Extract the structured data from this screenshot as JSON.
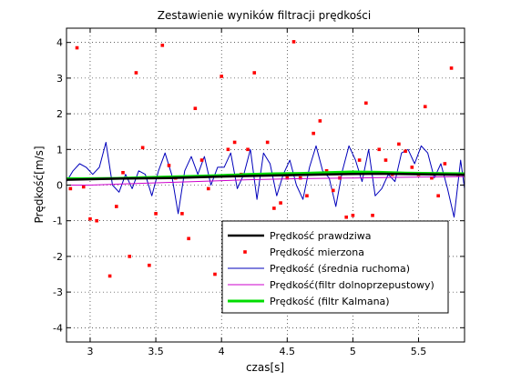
{
  "chart_data": {
    "type": "line",
    "title": "Zestawienie wyników filtracji prędkości",
    "xlabel": "czas[s]",
    "ylabel": "Prędkość[m/s]",
    "xlim": [
      2.82,
      5.85
    ],
    "ylim": [
      -4.4,
      4.4
    ],
    "xticks": [
      3,
      3.5,
      4,
      4.5,
      5,
      5.5
    ],
    "xtick_labels": [
      "3",
      "3.5",
      "4",
      "4.5",
      "5",
      "5.5"
    ],
    "yticks": [
      -4,
      -3,
      -2,
      -1,
      0,
      1,
      2,
      3,
      4
    ],
    "ytick_labels": [
      "-4",
      "-3",
      "-2",
      "-1",
      "0",
      "1",
      "2",
      "3",
      "4"
    ],
    "grid": true,
    "legend_position": "bottom-right",
    "series": [
      {
        "name": "Prędkość prawdziwa",
        "style": "line",
        "color": "#000000",
        "x": [
          2.82,
          3.2,
          3.6,
          4.0,
          4.4,
          4.8,
          5.2,
          5.6,
          5.85
        ],
        "y": [
          0.15,
          0.18,
          0.2,
          0.24,
          0.27,
          0.3,
          0.32,
          0.3,
          0.29
        ]
      },
      {
        "name": "Prędkość mierzona",
        "style": "markers",
        "color": "#ff0000",
        "x": [
          2.85,
          2.9,
          2.95,
          3.0,
          3.05,
          3.15,
          3.2,
          3.25,
          3.3,
          3.35,
          3.4,
          3.45,
          3.5,
          3.55,
          3.6,
          3.65,
          3.7,
          3.75,
          3.8,
          3.85,
          3.9,
          3.95,
          4.0,
          4.05,
          4.1,
          4.15,
          4.2,
          4.25,
          4.35,
          4.4,
          4.45,
          4.5,
          4.55,
          4.6,
          4.65,
          4.7,
          4.75,
          4.8,
          4.85,
          4.9,
          4.95,
          5.0,
          5.05,
          5.1,
          5.15,
          5.2,
          5.25,
          5.3,
          5.35,
          5.4,
          5.45,
          5.5,
          5.55,
          5.6,
          5.65,
          5.7,
          5.75,
          5.8
        ],
        "y": [
          -0.1,
          3.85,
          -0.05,
          -0.95,
          -1.0,
          -2.55,
          -0.6,
          0.35,
          -2.0,
          3.15,
          1.05,
          -2.25,
          -0.8,
          3.92,
          0.55,
          0.2,
          -0.8,
          -1.5,
          2.15,
          0.7,
          -0.1,
          -2.5,
          3.05,
          1.0,
          1.2,
          0.3,
          1.0,
          3.15,
          1.2,
          -0.65,
          -0.5,
          0.2,
          4.02,
          0.2,
          -0.3,
          1.45,
          1.8,
          0.4,
          -0.15,
          0.2,
          -0.9,
          -0.85,
          0.7,
          2.3,
          -0.85,
          1.0,
          0.7,
          0.3,
          1.15,
          0.95,
          0.5,
          0.3,
          2.2,
          0.2,
          -0.3,
          0.6,
          3.28,
          0.3
        ]
      },
      {
        "name": "Prędkość (średnia ruchoma)",
        "style": "line",
        "color": "#0000bb",
        "x": [
          2.82,
          2.87,
          2.92,
          2.97,
          3.02,
          3.07,
          3.12,
          3.17,
          3.22,
          3.27,
          3.32,
          3.37,
          3.42,
          3.47,
          3.52,
          3.57,
          3.62,
          3.67,
          3.72,
          3.77,
          3.82,
          3.87,
          3.92,
          3.97,
          4.02,
          4.07,
          4.12,
          4.17,
          4.22,
          4.27,
          4.32,
          4.37,
          4.42,
          4.47,
          4.52,
          4.57,
          4.62,
          4.67,
          4.72,
          4.77,
          4.82,
          4.87,
          4.92,
          4.97,
          5.02,
          5.07,
          5.12,
          5.17,
          5.22,
          5.27,
          5.32,
          5.37,
          5.42,
          5.47,
          5.52,
          5.57,
          5.62,
          5.67,
          5.72,
          5.77,
          5.82,
          5.85
        ],
        "y": [
          0.1,
          0.4,
          0.6,
          0.5,
          0.3,
          0.5,
          1.2,
          0.0,
          -0.2,
          0.3,
          -0.1,
          0.4,
          0.3,
          -0.3,
          0.4,
          0.9,
          0.3,
          -0.8,
          0.4,
          0.8,
          0.3,
          0.8,
          0.0,
          0.5,
          0.5,
          0.9,
          -0.1,
          0.3,
          1.0,
          -0.4,
          0.9,
          0.6,
          -0.3,
          0.3,
          0.7,
          0.0,
          -0.4,
          0.5,
          1.1,
          0.4,
          0.2,
          -0.6,
          0.4,
          1.1,
          0.7,
          0.1,
          1.0,
          -0.3,
          -0.1,
          0.3,
          0.1,
          0.9,
          1.0,
          0.6,
          1.1,
          0.9,
          0.2,
          0.6,
          -0.1,
          -0.9,
          0.7,
          -0.1
        ]
      },
      {
        "name": "Prędkość(filtr dolnoprzepustowy)",
        "style": "line",
        "color": "#cc00cc",
        "x": [
          2.82,
          3.0,
          3.4,
          3.8,
          4.2,
          4.6,
          5.0,
          5.4,
          5.85
        ],
        "y": [
          0.0,
          0.0,
          0.05,
          0.1,
          0.15,
          0.18,
          0.2,
          0.22,
          0.24
        ]
      },
      {
        "name": "Prędkość (filtr Kalmana)",
        "style": "line",
        "color": "#00dd00",
        "x": [
          2.82,
          3.0,
          3.2,
          3.4,
          3.6,
          3.8,
          4.0,
          4.2,
          4.4,
          4.6,
          4.8,
          5.0,
          5.2,
          5.4,
          5.6,
          5.85
        ],
        "y": [
          0.18,
          0.18,
          0.19,
          0.21,
          0.23,
          0.25,
          0.27,
          0.3,
          0.32,
          0.33,
          0.35,
          0.37,
          0.36,
          0.34,
          0.33,
          0.32
        ]
      }
    ]
  }
}
